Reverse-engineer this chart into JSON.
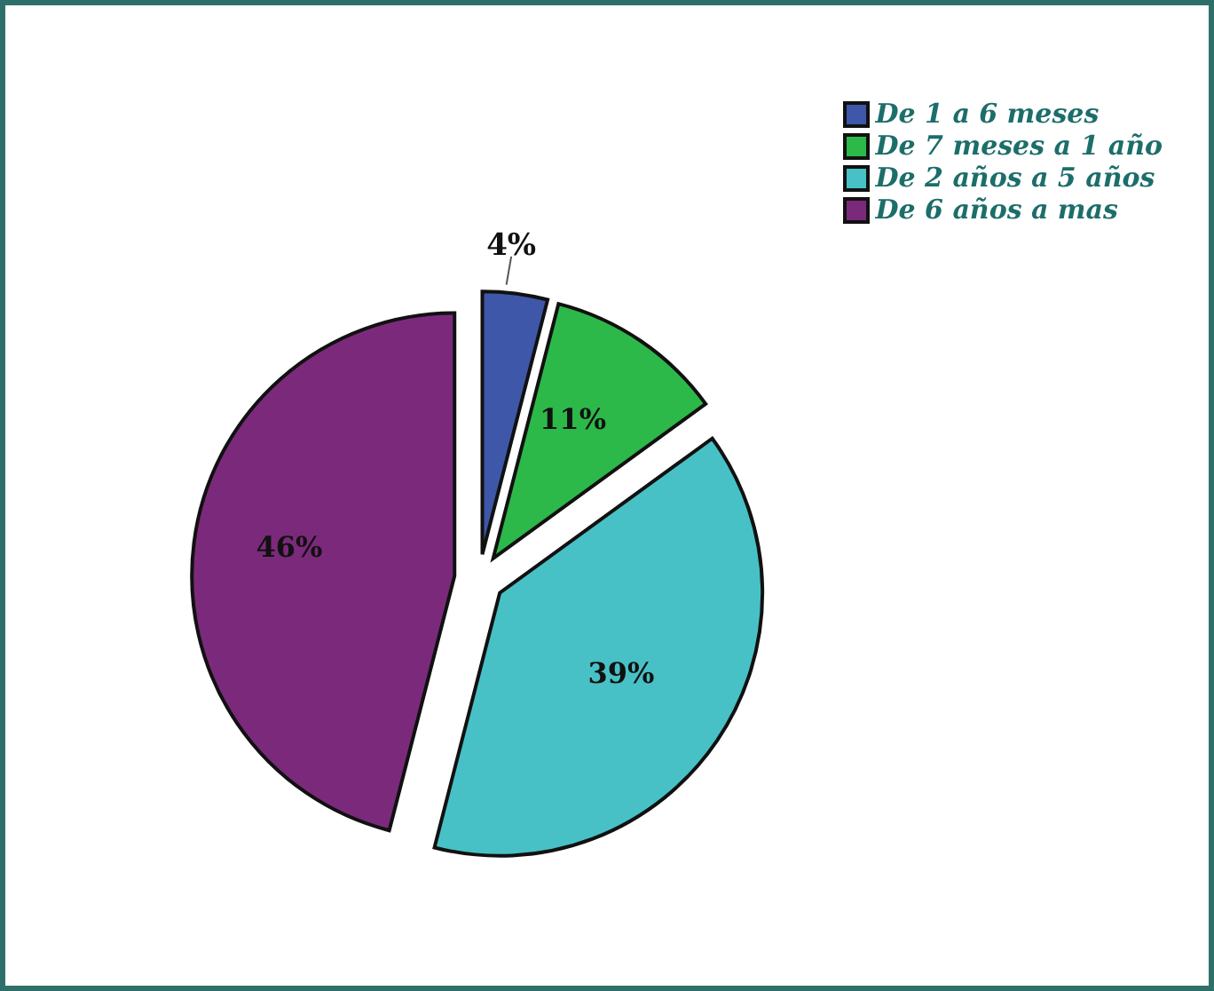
{
  "chart_data": {
    "type": "pie",
    "categories": [
      "De 1 a 6 meses",
      "De 7 meses a 1 año",
      "De 2 años a 5 años",
      "De 6 años a mas"
    ],
    "values": [
      4,
      11,
      39,
      46
    ],
    "value_labels": [
      "4%",
      "11%",
      "39%",
      "46%"
    ],
    "colors": [
      "#3f57a8",
      "#2db84a",
      "#48c1c6",
      "#7b2a7b"
    ],
    "legend": "top right"
  }
}
